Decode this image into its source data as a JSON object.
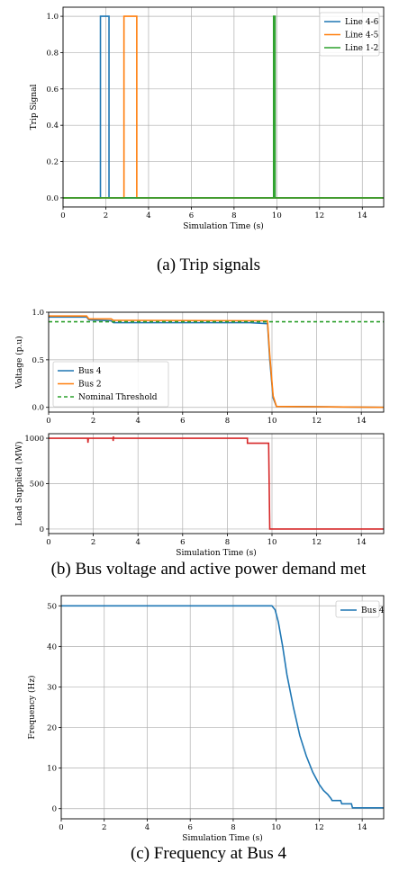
{
  "captions": {
    "a": "(a) Trip signals",
    "b": "(b) Bus voltage and active power demand met",
    "c": "(c) Frequency at Bus 4"
  },
  "chart_data": [
    {
      "type": "line",
      "xlabel": "Simulation Time (s)",
      "ylabel": "Trip Signal",
      "xlim": [
        0,
        15
      ],
      "ylim": [
        -0.05,
        1.05
      ],
      "xticks": [
        "0",
        "2",
        "4",
        "6",
        "8",
        "10",
        "12",
        "14"
      ],
      "yticks": [
        "0.0",
        "0.2",
        "0.4",
        "0.6",
        "0.8",
        "1.0"
      ],
      "legend_position": "top-right",
      "grid": true,
      "series": [
        {
          "name": "Line 4-6",
          "color": "#1f77b4",
          "points": [
            [
              0,
              0
            ],
            [
              1.75,
              0
            ],
            [
              1.75,
              1
            ],
            [
              2.15,
              1
            ],
            [
              2.15,
              0
            ],
            [
              15,
              0
            ]
          ]
        },
        {
          "name": "Line 4-5",
          "color": "#ff7f0e",
          "points": [
            [
              0,
              0
            ],
            [
              2.85,
              0
            ],
            [
              2.85,
              1
            ],
            [
              3.45,
              1
            ],
            [
              3.45,
              0
            ],
            [
              15,
              0
            ]
          ]
        },
        {
          "name": "Line 1-2",
          "color": "#2ca02c",
          "points": [
            [
              0,
              0
            ],
            [
              9.85,
              0
            ],
            [
              9.85,
              1
            ],
            [
              9.92,
              1
            ],
            [
              9.92,
              0
            ],
            [
              15,
              0
            ]
          ]
        }
      ]
    },
    {
      "type": "line",
      "xlabel": "",
      "ylabel": "Voltage (p.u)",
      "xlim": [
        0,
        15
      ],
      "ylim": [
        -0.05,
        1.0
      ],
      "xticks": [
        "0",
        "2",
        "4",
        "6",
        "8",
        "10",
        "12",
        "14"
      ],
      "yticks": [
        "0.0",
        "0.5",
        "1.0"
      ],
      "legend_position": "bottom-left",
      "grid": true,
      "series": [
        {
          "name": "Bus 4",
          "color": "#1f77b4",
          "dash": "",
          "points": [
            [
              0,
              0.95
            ],
            [
              1.7,
              0.95
            ],
            [
              1.8,
              0.92
            ],
            [
              2.8,
              0.91
            ],
            [
              2.9,
              0.89
            ],
            [
              9.0,
              0.89
            ],
            [
              9.8,
              0.88
            ],
            [
              9.9,
              0.5
            ],
            [
              10.05,
              0.1
            ],
            [
              10.2,
              0.01
            ],
            [
              15,
              0.0
            ]
          ]
        },
        {
          "name": "Bus 2",
          "color": "#ff7f0e",
          "dash": "",
          "points": [
            [
              0,
              0.96
            ],
            [
              1.7,
              0.96
            ],
            [
              1.8,
              0.93
            ],
            [
              2.8,
              0.93
            ],
            [
              2.9,
              0.915
            ],
            [
              9.8,
              0.91
            ],
            [
              9.9,
              0.55
            ],
            [
              10.05,
              0.12
            ],
            [
              10.2,
              0.01
            ],
            [
              15,
              0.0
            ]
          ]
        },
        {
          "name": "Nominal Threshold",
          "color": "#2ca02c",
          "dash": "4,3",
          "points": [
            [
              0,
              0.9
            ],
            [
              15,
              0.9
            ]
          ]
        }
      ]
    },
    {
      "type": "line",
      "xlabel": "Simulation Time (s)",
      "ylabel": "Load Supplied (MW)",
      "xlim": [
        0,
        15
      ],
      "ylim": [
        -50,
        1050
      ],
      "xticks": [
        "0",
        "2",
        "4",
        "6",
        "8",
        "10",
        "12",
        "14"
      ],
      "yticks": [
        "0",
        "500",
        "1000"
      ],
      "grid": true,
      "series": [
        {
          "name": "",
          "color": "#d62728",
          "dash": "",
          "points": [
            [
              0,
              1000
            ],
            [
              1.75,
              1000
            ],
            [
              1.76,
              950
            ],
            [
              1.78,
              1000
            ],
            [
              2.88,
              1000
            ],
            [
              2.89,
              970
            ],
            [
              2.9,
              1020
            ],
            [
              2.91,
              1000
            ],
            [
              8.9,
              1000
            ],
            [
              8.9,
              945
            ],
            [
              9.85,
              945
            ],
            [
              9.9,
              0
            ],
            [
              15,
              0
            ]
          ]
        }
      ]
    },
    {
      "type": "line",
      "xlabel": "Simulation Time (s)",
      "ylabel": "Frequency (Hz)",
      "xlim": [
        0,
        15
      ],
      "ylim": [
        -2.5,
        52.5
      ],
      "xticks": [
        "0",
        "2",
        "4",
        "6",
        "8",
        "10",
        "12",
        "14"
      ],
      "yticks": [
        "0",
        "10",
        "20",
        "30",
        "40",
        "50"
      ],
      "legend_position": "top-right",
      "grid": true,
      "series": [
        {
          "name": "Bus 4",
          "color": "#1f77b4",
          "dash": "",
          "points": [
            [
              0,
              50
            ],
            [
              9.8,
              50
            ],
            [
              9.95,
              49
            ],
            [
              10.1,
              46
            ],
            [
              10.3,
              40
            ],
            [
              10.5,
              33
            ],
            [
              10.8,
              25
            ],
            [
              11.1,
              18
            ],
            [
              11.4,
              13
            ],
            [
              11.7,
              9
            ],
            [
              12.0,
              6
            ],
            [
              12.2,
              4.5
            ],
            [
              12.4,
              3.5
            ],
            [
              12.55,
              2.5
            ],
            [
              12.6,
              2.0
            ],
            [
              13.0,
              2.0
            ],
            [
              13.05,
              1.2
            ],
            [
              13.5,
              1.2
            ],
            [
              13.55,
              0.2
            ],
            [
              15,
              0.2
            ]
          ]
        }
      ]
    }
  ]
}
